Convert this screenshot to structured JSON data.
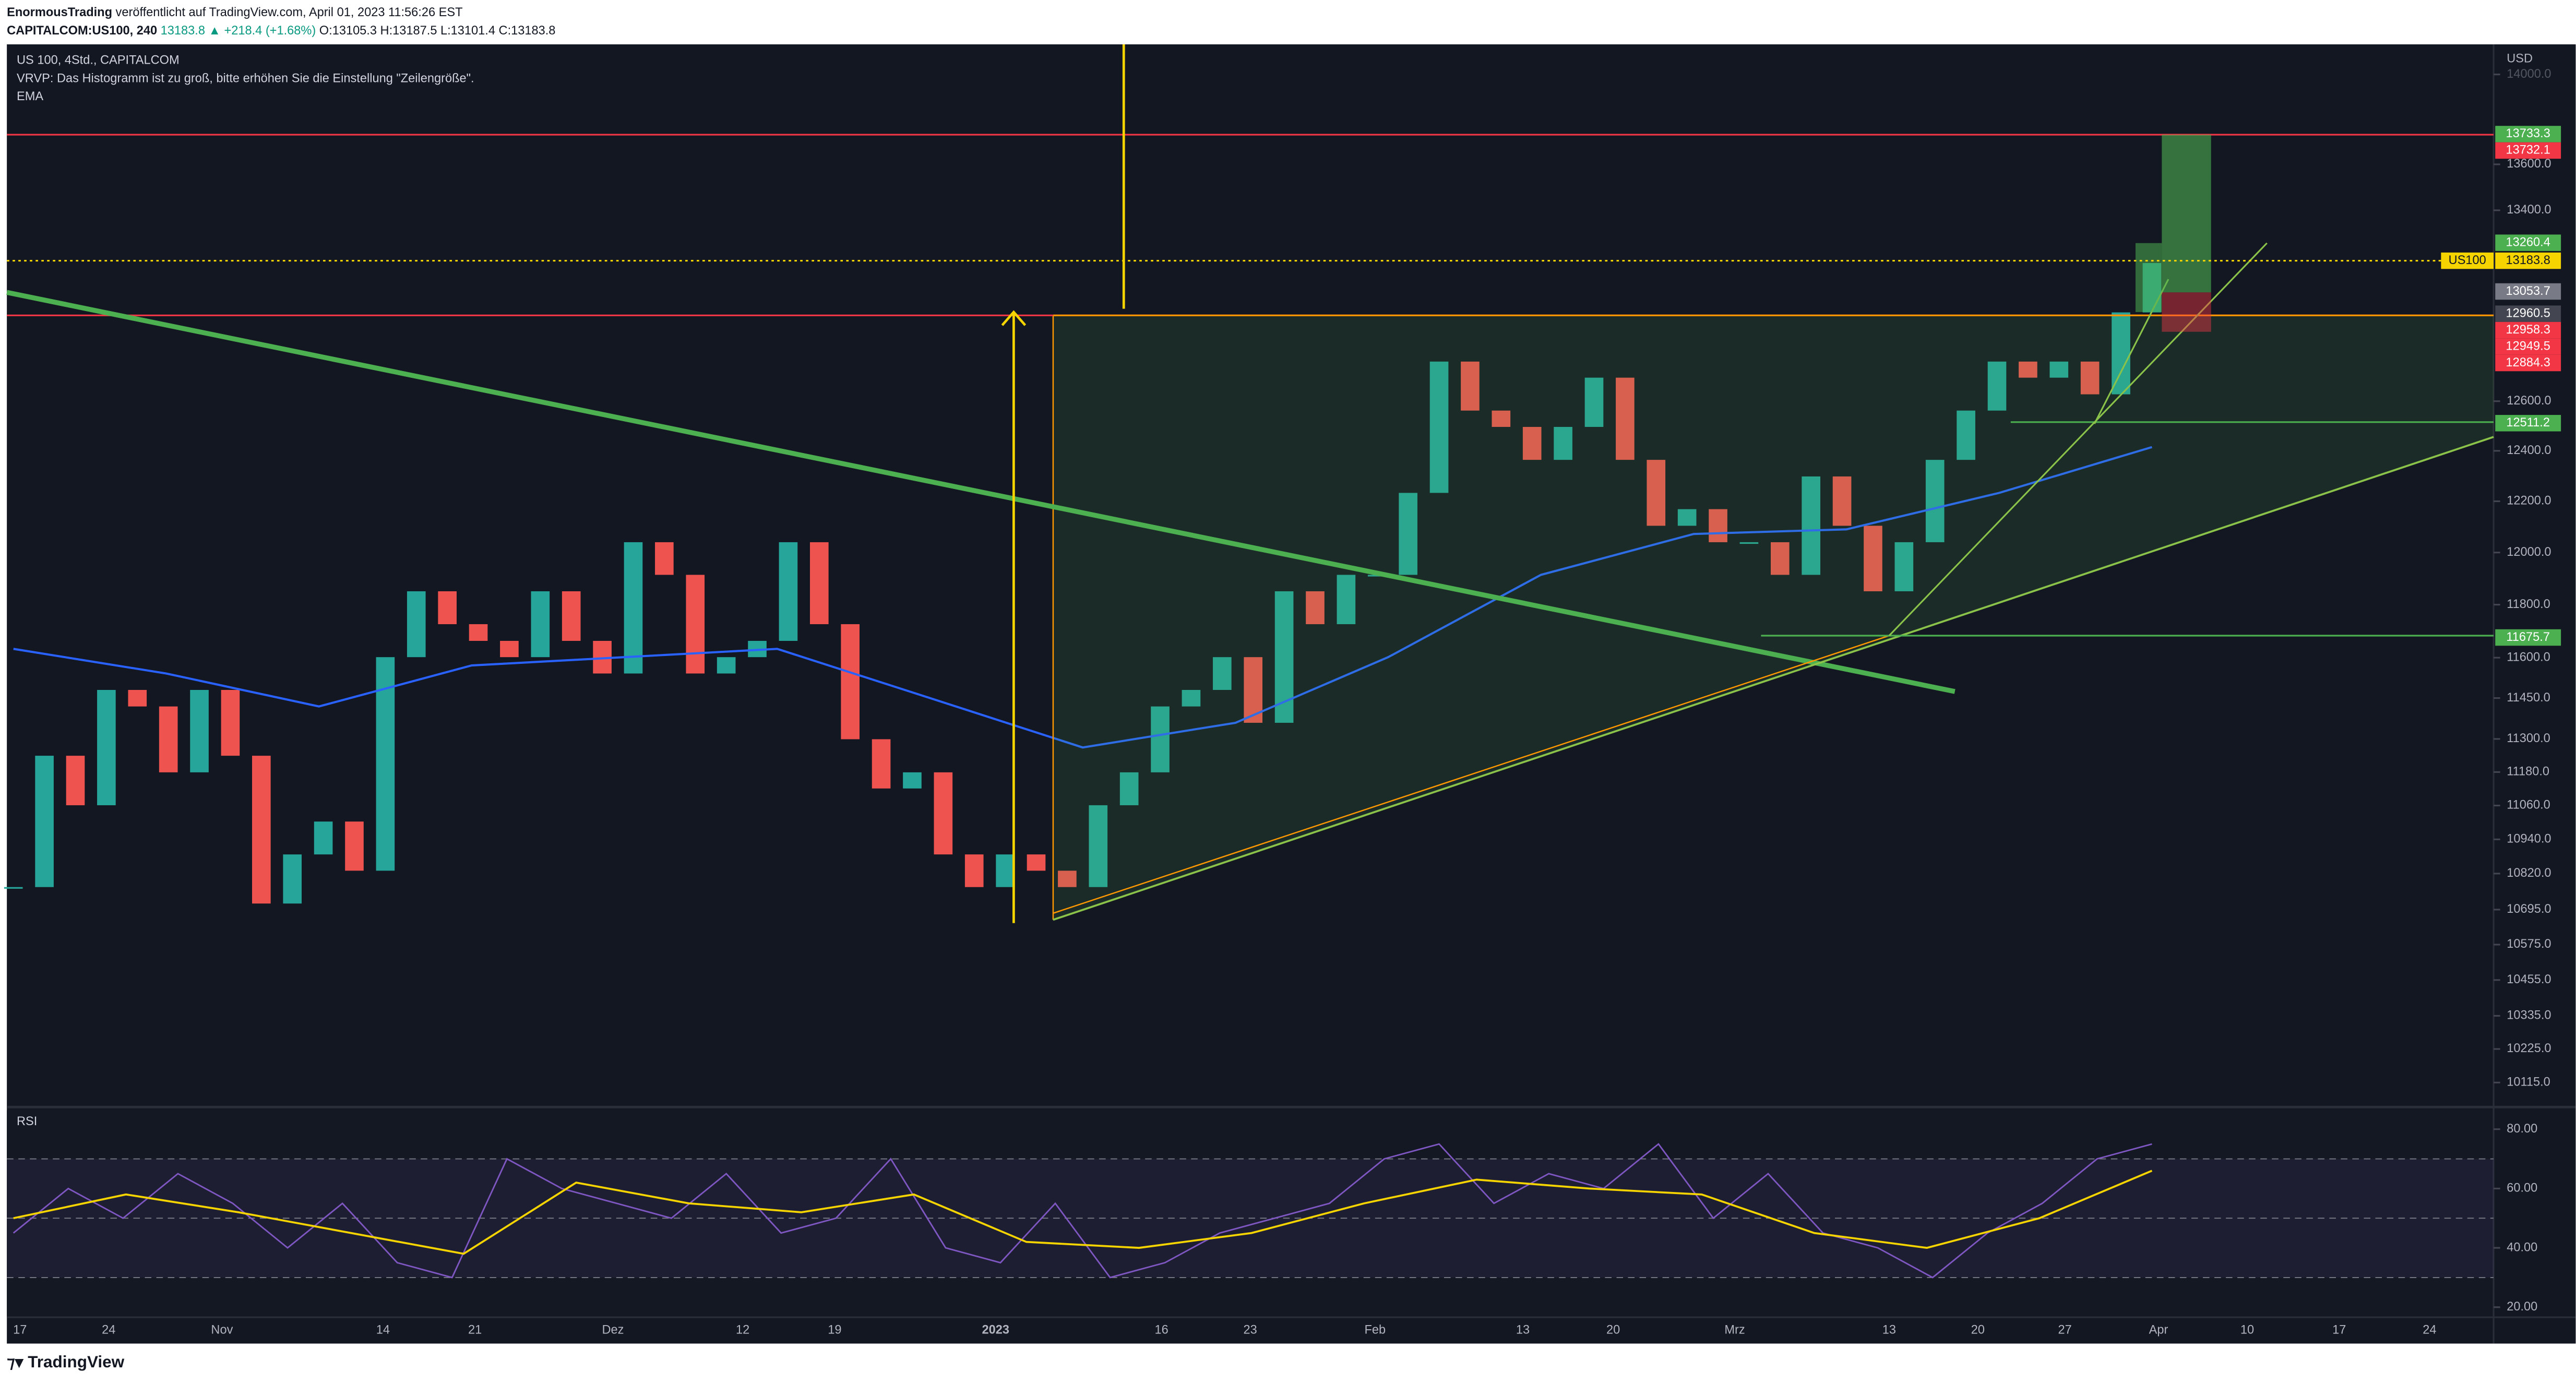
{
  "header": {
    "author": "EnormousTrading",
    "published": "veröffentlicht auf TradingView.com, April 01, 2023 11:56:26 EST",
    "symbol": "CAPITALCOM:US100, 240",
    "price": "13183.8",
    "change": "▲ +218.4 (+1.68%)",
    "open": "O:13105.3",
    "high": "H:13187.5",
    "low": "L:13101.4",
    "close": "C:13183.8"
  },
  "legend": [
    "US 100, 4Std., CAPITALCOM",
    "VRVP: Das Histogramm ist zu groß, bitte erhöhen Sie die Einstellung \"Zeilengröße\".",
    "EMA"
  ],
  "currency": "USD",
  "brand": "TradingView",
  "chart_data": [
    {
      "type": "candlestick",
      "log": true,
      "up_color": "#26a69a",
      "down_color": "#ef5350",
      "values": [
        10773,
        11239,
        11061,
        11480,
        11419,
        11179,
        11480,
        11239,
        10716,
        10887,
        11003,
        10830,
        11602,
        11851,
        11726,
        11663,
        11602,
        11851,
        11663,
        11541,
        12040,
        11914,
        11541,
        11602,
        11663,
        12040,
        11726,
        11299,
        11121,
        11179,
        10887,
        10773,
        10887,
        10830,
        10773,
        11061,
        11179,
        11419,
        11480,
        11602,
        11359,
        11851,
        11726,
        11914,
        11914,
        12233,
        12762,
        12562,
        12496,
        12364,
        12496,
        12696,
        12364,
        12104,
        12169,
        12040,
        12040,
        11914,
        12298,
        12104,
        11851,
        12040,
        12364,
        12562,
        12762,
        12696,
        12762,
        12628,
        12966,
        13174
      ],
      "ema": {
        "name": "EMA",
        "color": "#2962ff",
        "values": [
          11633,
          11541,
          11419,
          11571,
          11602,
          11633,
          11450,
          11269,
          11359,
          11602,
          11914,
          12072,
          12090,
          12233,
          12415
        ]
      },
      "ylim": [
        10046,
        14114
      ],
      "yticks": [
        {
          "value": 14000,
          "label": "14000.0"
        },
        {
          "value": 13600,
          "label": "13600.0"
        },
        {
          "value": 13400,
          "label": "13400.0"
        },
        {
          "value": 12600,
          "label": "12600.0"
        },
        {
          "value": 12400,
          "label": "12400.0"
        },
        {
          "value": 12200,
          "label": "12200.0"
        },
        {
          "value": 12000,
          "label": "12000.0"
        },
        {
          "value": 11800,
          "label": "11800.0"
        },
        {
          "value": 11600,
          "label": "11600.0"
        },
        {
          "value": 11450,
          "label": "11450.0"
        },
        {
          "value": 11300,
          "label": "11300.0"
        },
        {
          "value": 11180,
          "label": "11180.0"
        },
        {
          "value": 11060,
          "label": "11060.0"
        },
        {
          "value": 10940,
          "label": "10940.0"
        },
        {
          "value": 10820,
          "label": "10820.0"
        },
        {
          "value": 10695,
          "label": "10695.0"
        },
        {
          "value": 10575,
          "label": "10575.0"
        },
        {
          "value": 10455,
          "label": "10455.0"
        },
        {
          "value": 10335,
          "label": "10335.0"
        },
        {
          "value": 10225,
          "label": "10225.0"
        },
        {
          "value": 10115,
          "label": "10115.0"
        }
      ],
      "price_labels": [
        {
          "value": 13733.3,
          "color": "#4caf50"
        },
        {
          "value": 13732.1,
          "color": "#f23645"
        },
        {
          "value": 13260.4,
          "color": "#4caf50"
        },
        {
          "name": "US100",
          "value": 13183.8,
          "color": "#f5d400"
        },
        {
          "value": 13053.7,
          "color": "#787b86"
        },
        {
          "value": 12960.5,
          "color": "#434651"
        },
        {
          "value": 12958.3,
          "color": "#f23645"
        },
        {
          "value": 12949.5,
          "color": "#f23645"
        },
        {
          "value": 12884.3,
          "color": "#f23645"
        },
        {
          "value": 12511.2,
          "color": "#4caf50"
        },
        {
          "value": 11675.7,
          "color": "#4caf50"
        }
      ],
      "time_labels": [
        "17",
        "24",
        "Nov",
        "14",
        "21",
        "Dez",
        "12",
        "19",
        "2023",
        "16",
        "23",
        "Feb",
        "13",
        "20",
        "Mrz",
        "13",
        "20",
        "27",
        "Apr",
        "10",
        "17",
        "24"
      ]
    },
    {
      "type": "line",
      "title": "RSI",
      "ylim": [
        17.7,
        85.8
      ],
      "yticks": [
        {
          "value": 80,
          "label": "80.00"
        },
        {
          "value": 60,
          "label": "60.00"
        },
        {
          "value": 40,
          "label": "40.00"
        },
        {
          "value": 20,
          "label": "20.00"
        }
      ],
      "bands": [
        30,
        50,
        70
      ],
      "series": [
        {
          "color": "#7e57c2",
          "values": [
            45,
            60,
            50,
            65,
            55,
            40,
            55,
            35,
            30,
            70,
            60,
            55,
            50,
            65,
            45,
            50,
            70,
            40,
            35,
            55,
            30,
            35,
            45,
            50,
            55,
            70,
            75,
            55,
            65,
            60,
            75,
            50,
            65,
            45,
            40,
            30,
            45,
            55,
            70,
            75
          ]
        },
        {
          "color": "#f5d400",
          "values": [
            50,
            58,
            52,
            45,
            38,
            62,
            55,
            52,
            58,
            42,
            40,
            45,
            55,
            63,
            60,
            58,
            45,
            40,
            50,
            66
          ]
        }
      ]
    }
  ]
}
